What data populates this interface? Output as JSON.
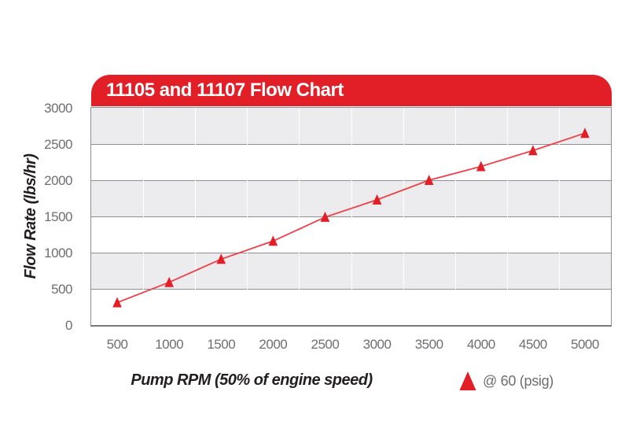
{
  "header": {
    "title": "11105 and 11107 Flow Chart"
  },
  "chart_data": {
    "type": "line",
    "title": "11105 and 11107 Flow Chart",
    "x": [
      500,
      1000,
      1500,
      2000,
      2500,
      3000,
      3500,
      4000,
      4500,
      5000
    ],
    "series": [
      {
        "name": "@ 60 (psig)",
        "marker": "triangle-up",
        "values": [
          310,
          590,
          910,
          1160,
          1490,
          1730,
          2000,
          2190,
          2410,
          2650
        ]
      }
    ],
    "xlabel": "Pump RPM (50% of engine speed)",
    "ylabel": "Flow Rate (lbs/hr)",
    "ylim": [
      0,
      3000
    ],
    "xlim_categories": "points centered in 10 equal columns",
    "y_ticks": [
      0,
      500,
      1000,
      1500,
      2000,
      2500,
      3000
    ],
    "grid": {
      "horizontal_gridlines": true,
      "vertical_category_separators": true,
      "alternating_row_bands": true
    },
    "legend_position": "bottom-right"
  },
  "legend": {
    "marker_icon": "triangle-up-icon",
    "label": "@ 60 (psig)"
  },
  "colors": {
    "header_red": "#e21e26",
    "header_text": "#ffffff",
    "line_red": "#ef4046",
    "marker_red": "#e21e26",
    "band_gray": "#ececee",
    "band_white": "#ffffff",
    "grid_gray": "#8d8f92",
    "axis_dark": "#77797c",
    "vertical_grid_white": "#ffffff",
    "tick_text_gray": "#6d6e71",
    "title_text": "#231f20"
  }
}
